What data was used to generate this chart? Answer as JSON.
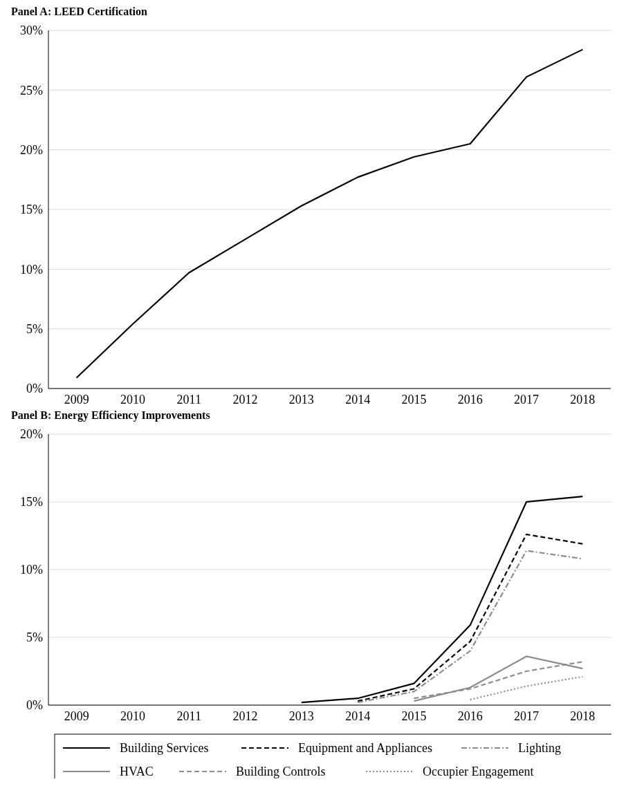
{
  "chart_data": [
    {
      "type": "line",
      "title": "Panel A: LEED Certification",
      "categories": [
        "2009",
        "2010",
        "2011",
        "2012",
        "2013",
        "2014",
        "2015",
        "2016",
        "2017",
        "2018"
      ],
      "values": [
        0.9,
        5.4,
        9.7,
        12.5,
        15.3,
        17.7,
        19.4,
        20.5,
        26.1,
        28.4
      ],
      "color": "#000000",
      "ylim": [
        0,
        30
      ],
      "yticks": [
        {
          "value": 0,
          "label": "0%"
        },
        {
          "value": 5,
          "label": "5%"
        },
        {
          "value": 10,
          "label": "10%"
        },
        {
          "value": 15,
          "label": "15%"
        },
        {
          "value": 20,
          "label": "20%"
        },
        {
          "value": 25,
          "label": "25%"
        },
        {
          "value": 30,
          "label": "30%"
        }
      ],
      "grid": "y"
    },
    {
      "type": "line",
      "title": "Panel B: Energy Efficiency Improvements",
      "categories": [
        "2009",
        "2010",
        "2011",
        "2012",
        "2013",
        "2014",
        "2015",
        "2016",
        "2017",
        "2018"
      ],
      "series": [
        {
          "name": "Building Services",
          "color": "#000000",
          "line_style": "solid",
          "values": [
            null,
            null,
            null,
            null,
            0.2,
            0.5,
            1.6,
            5.9,
            15.0,
            15.4
          ]
        },
        {
          "name": "Equipment and Appliances",
          "color": "#000000",
          "line_style": "dashed",
          "values": [
            null,
            null,
            null,
            null,
            null,
            0.3,
            1.2,
            4.7,
            12.6,
            11.9
          ]
        },
        {
          "name": "Lighting",
          "color": "#8c8c8c",
          "line_style": "dashdot",
          "values": [
            null,
            null,
            null,
            null,
            null,
            0.2,
            1.0,
            4.0,
            11.4,
            10.8
          ]
        },
        {
          "name": "HVAC",
          "color": "#8c8c8c",
          "line_style": "solid",
          "values": [
            null,
            null,
            null,
            null,
            null,
            null,
            0.3,
            1.3,
            3.6,
            2.7
          ]
        },
        {
          "name": "Building Controls",
          "color": "#8c8c8c",
          "line_style": "dashed",
          "values": [
            null,
            null,
            null,
            null,
            null,
            null,
            0.5,
            1.2,
            2.5,
            3.2
          ]
        },
        {
          "name": "Occupier Engagement",
          "color": "#8c8c8c",
          "line_style": "dotted",
          "values": [
            null,
            null,
            null,
            null,
            null,
            null,
            null,
            0.4,
            1.4,
            2.1
          ]
        }
      ],
      "ylim": [
        0,
        20
      ],
      "yticks": [
        {
          "value": 0,
          "label": "0%"
        },
        {
          "value": 5,
          "label": "5%"
        },
        {
          "value": 10,
          "label": "10%"
        },
        {
          "value": 15,
          "label": "15%"
        },
        {
          "value": 20,
          "label": "20%"
        }
      ],
      "grid": "y",
      "legend": "bottom"
    }
  ]
}
